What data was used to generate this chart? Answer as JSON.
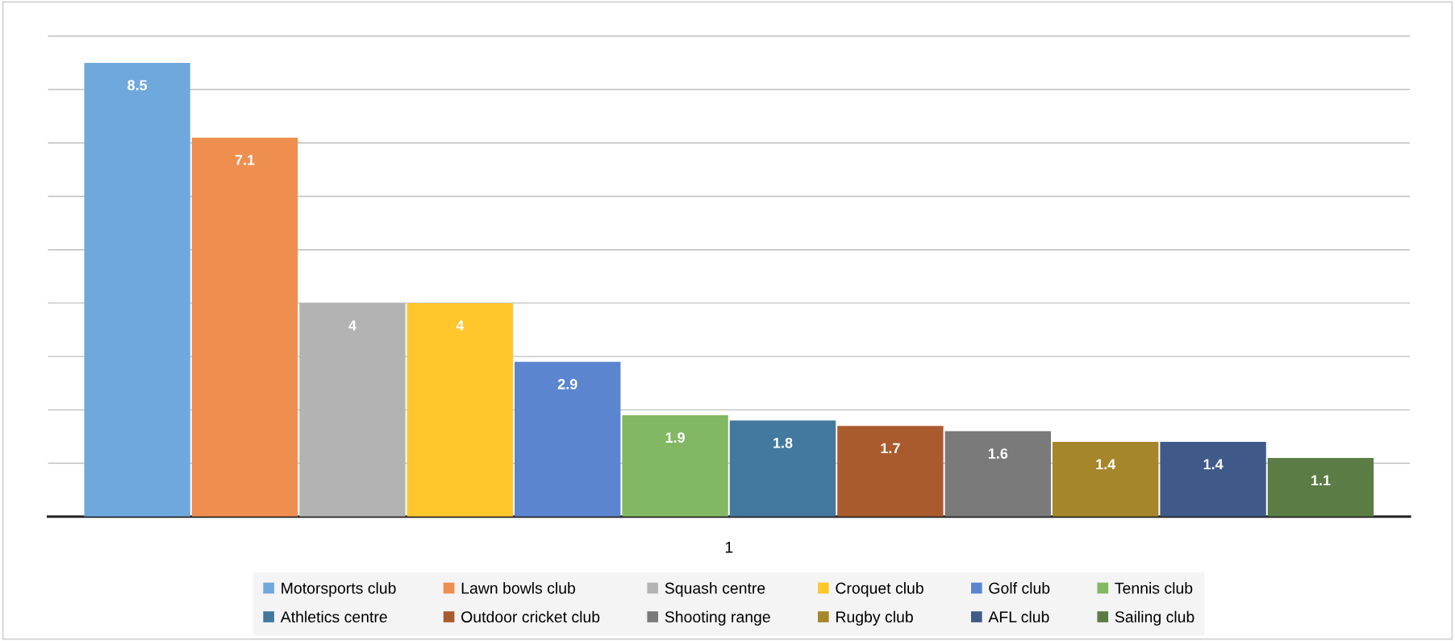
{
  "chart_data": {
    "type": "bar",
    "categories": [
      null
    ],
    "xlabel": "1",
    "series": [
      {
        "name": "Motorsports club",
        "color": "#6fa8dc",
        "values": [
          8.5
        ]
      },
      {
        "name": "Lawn bowls club",
        "color": "#ee8f4f",
        "values": [
          7.1
        ]
      },
      {
        "name": "Squash centre",
        "color": "#b3b3b3",
        "values": [
          4
        ]
      },
      {
        "name": "Croquet club",
        "color": "#ffc72c",
        "values": [
          4
        ]
      },
      {
        "name": "Golf club",
        "color": "#5b86cf",
        "values": [
          2.9
        ]
      },
      {
        "name": "Tennis club",
        "color": "#82b863",
        "values": [
          1.9
        ]
      },
      {
        "name": "Athletics centre",
        "color": "#43789f",
        "values": [
          1.8
        ]
      },
      {
        "name": "Outdoor cricket club",
        "color": "#aa5b2e",
        "values": [
          1.7
        ]
      },
      {
        "name": "Shooting range",
        "color": "#7a7a7a",
        "values": [
          1.6
        ]
      },
      {
        "name": "Rugby club",
        "color": "#a6862a",
        "values": [
          1.4
        ]
      },
      {
        "name": "AFL club",
        "color": "#3f5a89",
        "values": [
          1.4
        ]
      },
      {
        "name": "Sailing club",
        "color": "#5b7c45",
        "values": [
          1.1
        ]
      }
    ],
    "tick_labels": "x",
    "grid": "y",
    "legend": "bottom",
    "data_labels": true
  }
}
